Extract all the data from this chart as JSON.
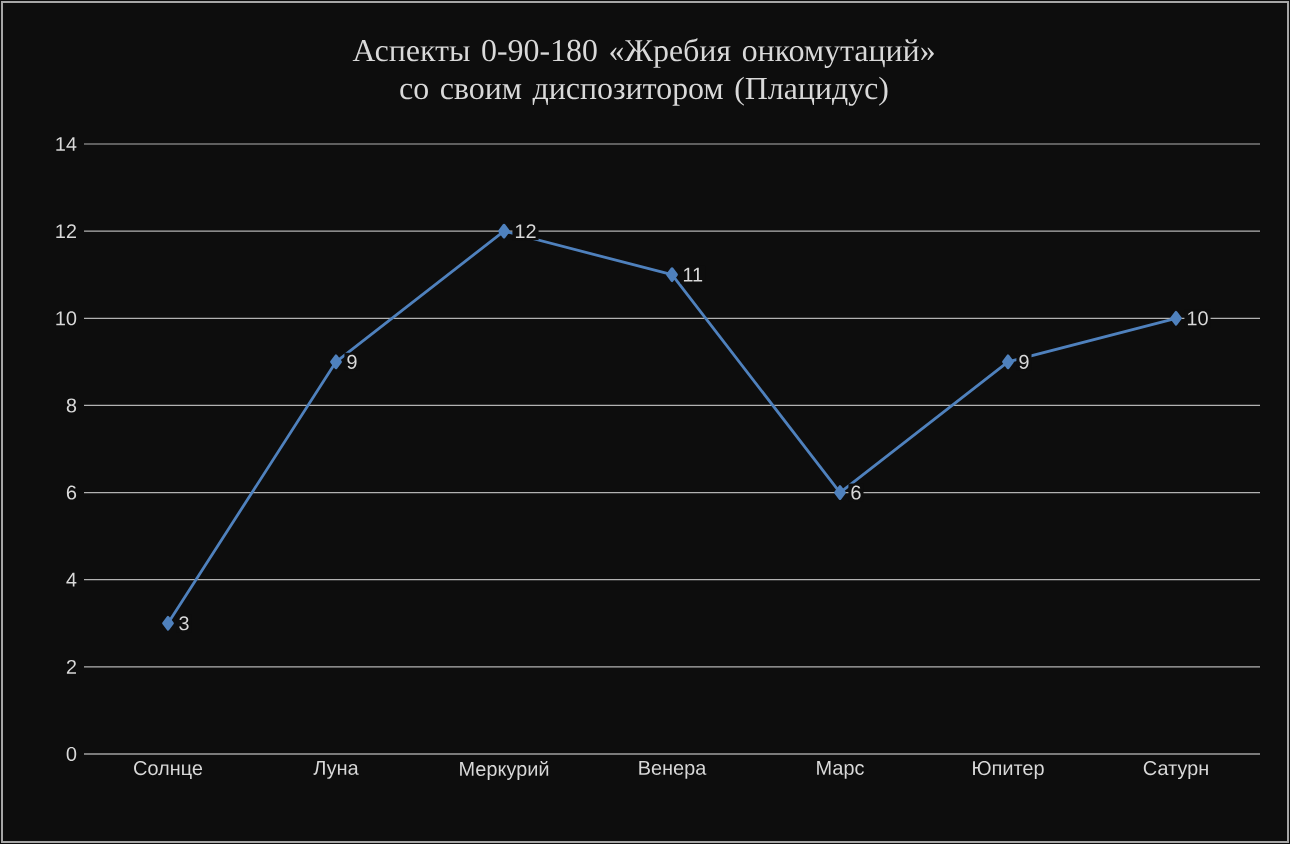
{
  "chart_data": {
    "type": "line",
    "title": "Аспекты 0-90-180 «Жребия онкомутаций» со своим диспозитором (Плацидус)",
    "categories": [
      "Солнце",
      "Луна",
      "Меркурий",
      "Венера",
      "Марс",
      "Юпитер",
      "Сатурн"
    ],
    "values": [
      3,
      9,
      12,
      11,
      6,
      9,
      10
    ],
    "color": "#4f81bd",
    "ylim": [
      0,
      14
    ],
    "yticks": [
      0,
      2,
      4,
      6,
      8,
      10,
      12,
      14
    ],
    "grid": "y",
    "marker": "diamond",
    "line_style": "solid",
    "data_labels": true
  }
}
